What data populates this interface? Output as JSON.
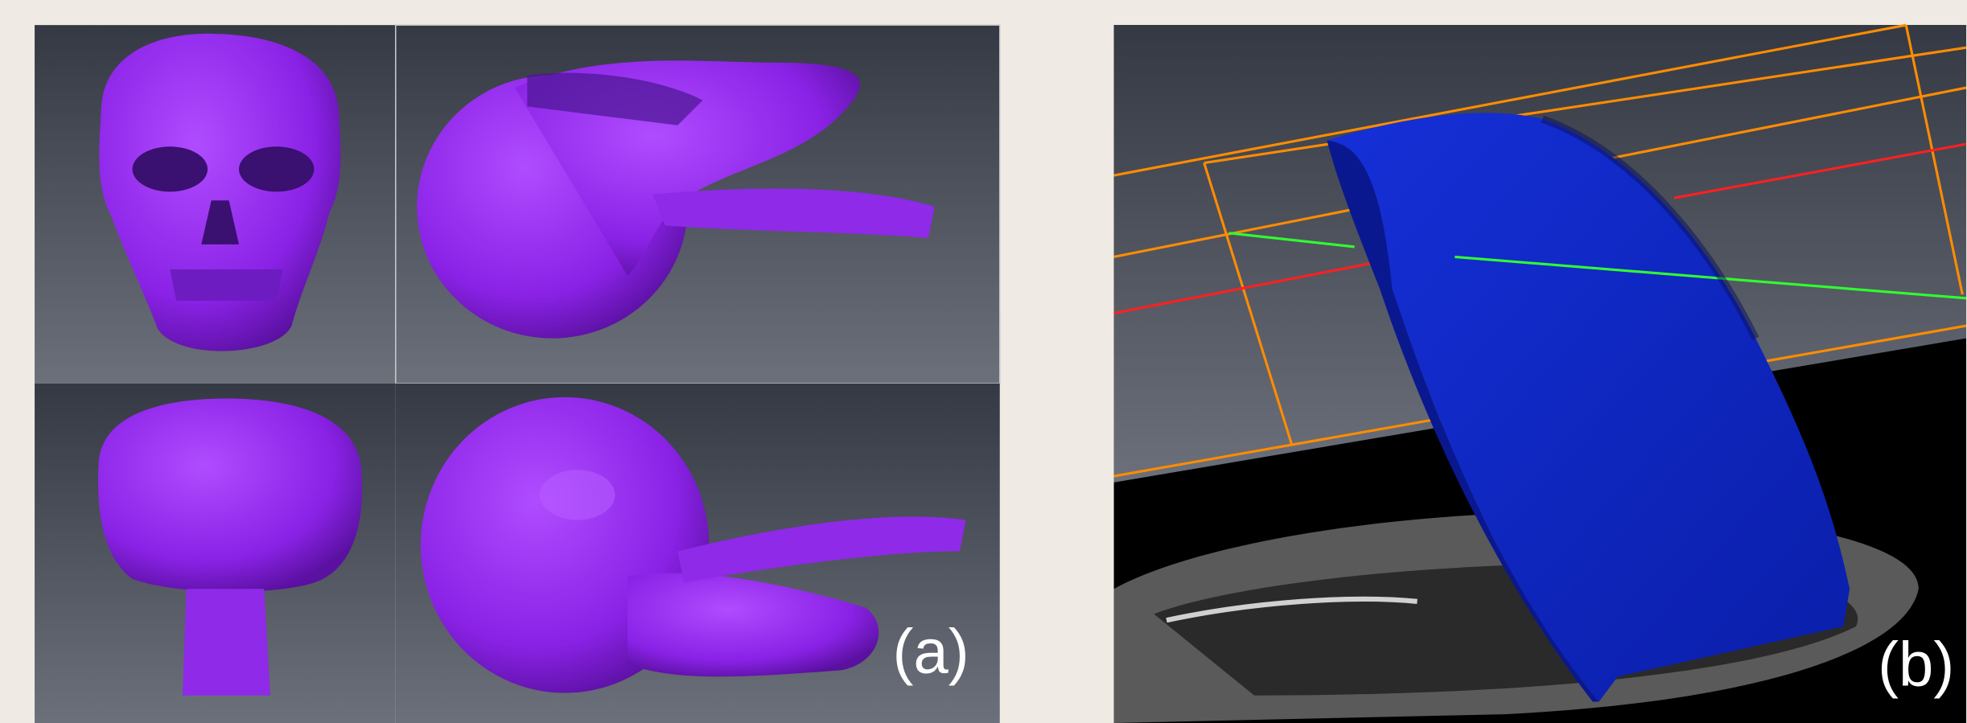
{
  "panels": [
    {
      "label": "(a)"
    },
    {
      "label": "(b)"
    }
  ]
}
